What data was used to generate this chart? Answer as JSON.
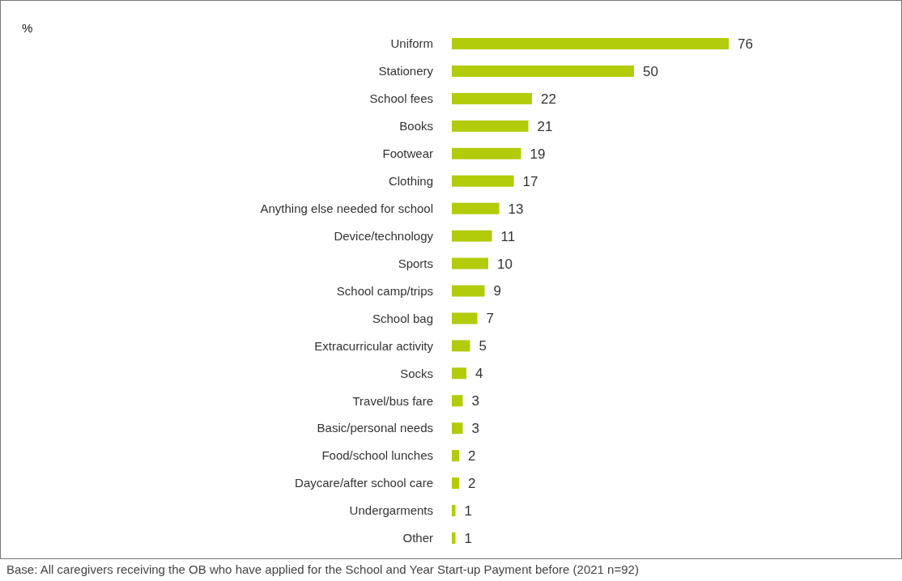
{
  "chart_data": {
    "type": "bar",
    "orientation": "horizontal",
    "categories": [
      "Uniform",
      "Stationery",
      "School fees",
      "Books",
      "Footwear",
      "Clothing",
      "Anything else needed for school",
      "Device/technology",
      "Sports",
      "School camp/trips",
      "School bag",
      "Extracurricular activity",
      "Socks",
      "Travel/bus fare",
      "Basic/personal needs",
      "Food/school lunches",
      "Daycare/after school care",
      "Undergarments",
      "Other"
    ],
    "values": [
      76,
      50,
      22,
      21,
      19,
      17,
      13,
      11,
      10,
      9,
      7,
      5,
      4,
      3,
      3,
      2,
      2,
      1,
      1
    ],
    "color": "#b2cb0a",
    "data_labels": true,
    "annotations": [
      "%",
      "Base: All caregivers receiving the OB who have applied for the School and Year Start-up Payment before (2021 n=92)"
    ]
  }
}
